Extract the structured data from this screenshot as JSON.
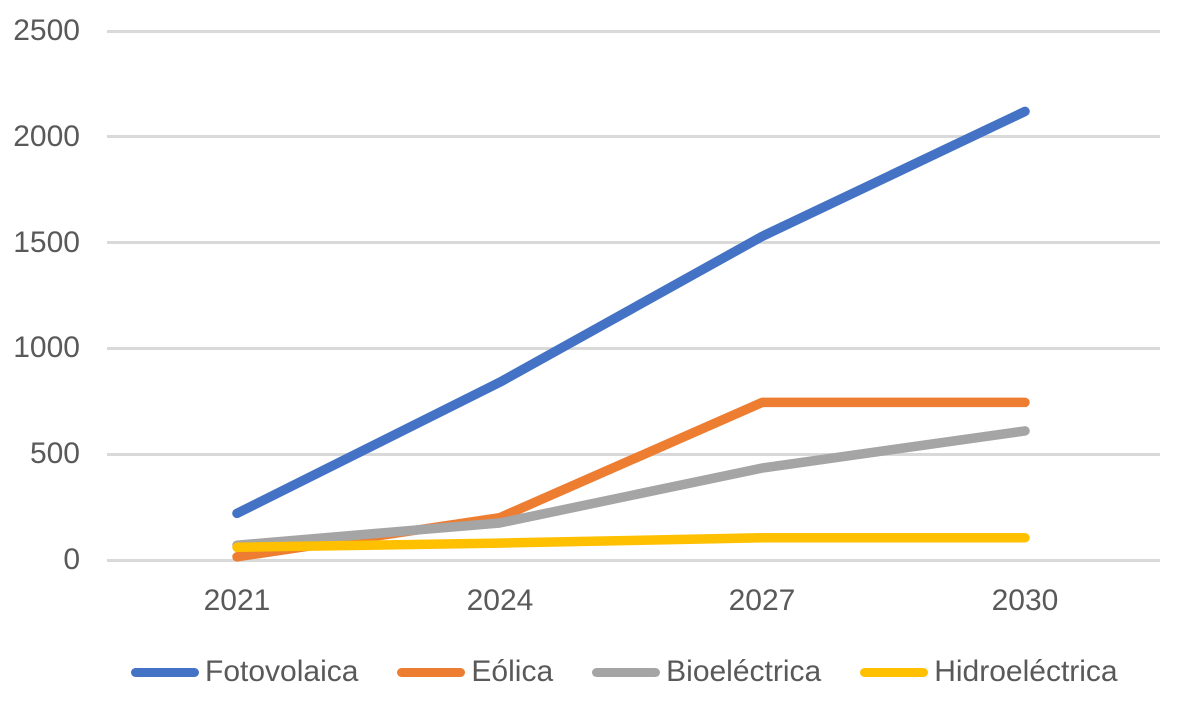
{
  "chart_data": {
    "type": "line",
    "title": "",
    "xlabel": "",
    "ylabel": "",
    "x_labels": [
      "2021",
      "2024",
      "2027",
      "2030"
    ],
    "y_ticks": [
      "2500",
      "2000",
      "1500",
      "1000",
      "500",
      "0"
    ],
    "ylim": [
      0,
      2500
    ],
    "grid": "horizontal-only",
    "gridline_color": "#D9D9D9",
    "text_color": "#595959",
    "background_color": "#FFFFFF",
    "legend_position": "bottom",
    "series": [
      {
        "name": "Fotovolaica",
        "color": "#4472C4",
        "values": [
          220,
          840,
          1530,
          2120
        ]
      },
      {
        "name": "Eólica",
        "color": "#ED7D31",
        "values": [
          15,
          200,
          745,
          745
        ]
      },
      {
        "name": "Bioeléctrica",
        "color": "#A5A5A5",
        "values": [
          70,
          175,
          435,
          610
        ]
      },
      {
        "name": "Hidroeléctrica",
        "color": "#FFC000",
        "values": [
          60,
          80,
          105,
          105
        ]
      }
    ]
  }
}
